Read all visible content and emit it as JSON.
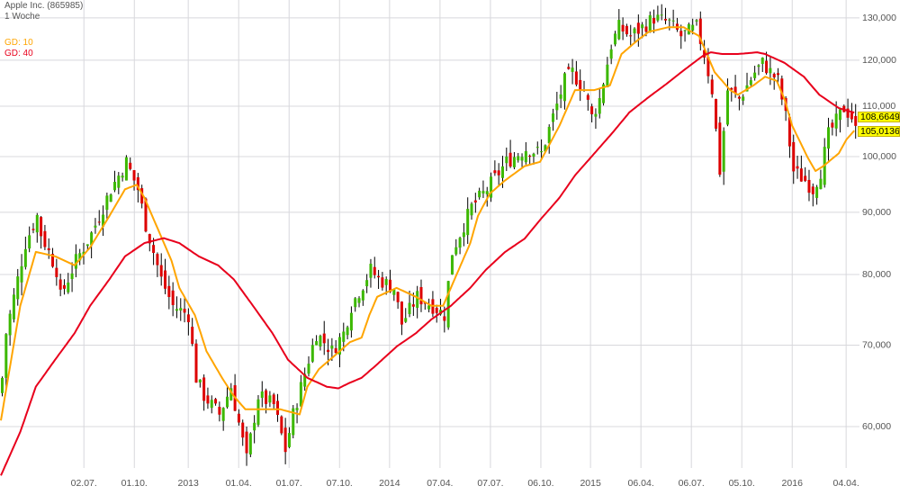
{
  "header": {
    "title": "Apple Inc. (865985)",
    "interval": "1 Woche"
  },
  "legend": [
    {
      "label": "GD: 10",
      "color": "#ffa500"
    },
    {
      "label": "GD: 40",
      "color": "#e8001c"
    }
  ],
  "last_values": {
    "gd40": "108,6649",
    "gd10": "105,0136"
  },
  "colors": {
    "up": "#3cb800",
    "down": "#dd0000",
    "wick": "#000000",
    "grid": "#d8d8dc"
  },
  "chart_data": {
    "type": "candlestick",
    "title": "Apple Inc. (865985)",
    "interval": "1 Woche",
    "y_scale": "log",
    "ylim": [
      53.5,
      133
    ],
    "y_ticks": [
      {
        "value": 130,
        "label": "130,000"
      },
      {
        "value": 120,
        "label": "120,000"
      },
      {
        "value": 110,
        "label": "110,000"
      },
      {
        "value": 100,
        "label": "100,000"
      },
      {
        "value": 90,
        "label": "90,000"
      },
      {
        "value": 80,
        "label": "80,000"
      },
      {
        "value": 70,
        "label": "70,000"
      },
      {
        "value": 60,
        "label": "60,000"
      }
    ],
    "x_unit": "week index",
    "x_range": [
      0,
      221
    ],
    "x_ticks": [
      {
        "week": 21.4,
        "label": "02.07."
      },
      {
        "week": 34.4,
        "label": "01.10."
      },
      {
        "week": 48.3,
        "label": "2013"
      },
      {
        "week": 61.3,
        "label": "01.04."
      },
      {
        "week": 74.3,
        "label": "01.07."
      },
      {
        "week": 87.3,
        "label": "07.10."
      },
      {
        "week": 100.2,
        "label": "2014"
      },
      {
        "week": 113.2,
        "label": "07.04."
      },
      {
        "week": 126.2,
        "label": "07.07."
      },
      {
        "week": 139.2,
        "label": "06.10."
      },
      {
        "week": 152.0,
        "label": "2015"
      },
      {
        "week": 165.0,
        "label": "06.04."
      },
      {
        "week": 178.0,
        "label": "06.07."
      },
      {
        "week": 191.0,
        "label": "05.10."
      },
      {
        "week": 204.0,
        "label": "2016"
      },
      {
        "week": 217.9,
        "label": "04.04."
      }
    ],
    "close_keypoints": [
      [
        0,
        65.8
      ],
      [
        1,
        71.6
      ],
      [
        6,
        84.9
      ],
      [
        9,
        89.4
      ],
      [
        10,
        86.4
      ],
      [
        14,
        80.7
      ],
      [
        15,
        76.7
      ],
      [
        19,
        82.1
      ],
      [
        23,
        86.4
      ],
      [
        28,
        94.0
      ],
      [
        32,
        99.0
      ],
      [
        35,
        94.0
      ],
      [
        37,
        87.9
      ],
      [
        41,
        79.3
      ],
      [
        44,
        75.4
      ],
      [
        48,
        74.1
      ],
      [
        50,
        65.8
      ],
      [
        52,
        63.6
      ],
      [
        56,
        61.4
      ],
      [
        59,
        64.7
      ],
      [
        61,
        60.4
      ],
      [
        63,
        56.4
      ],
      [
        66,
        63.6
      ],
      [
        70,
        62.5
      ],
      [
        73,
        57.4
      ],
      [
        75,
        61.4
      ],
      [
        79,
        68.1
      ],
      [
        81,
        71.6
      ],
      [
        85,
        69.2
      ],
      [
        88,
        71.6
      ],
      [
        90,
        75.4
      ],
      [
        95,
        80.7
      ],
      [
        97,
        79.3
      ],
      [
        101,
        78.0
      ],
      [
        103,
        72.9
      ],
      [
        107,
        76.7
      ],
      [
        111,
        75.4
      ],
      [
        114,
        74.1
      ],
      [
        116,
        83.5
      ],
      [
        121,
        90.9
      ],
      [
        125,
        94.0
      ],
      [
        130,
        99.0
      ],
      [
        135,
        101.5
      ],
      [
        139,
        100.6
      ],
      [
        142,
        107.8
      ],
      [
        145,
        115.4
      ],
      [
        147,
        117.3
      ],
      [
        150,
        113.4
      ],
      [
        152,
        107.8
      ],
      [
        154,
        111.5
      ],
      [
        157,
        123.5
      ],
      [
        159,
        127.7
      ],
      [
        162,
        125.6
      ],
      [
        165,
        127.7
      ],
      [
        168,
        130.0
      ],
      [
        172,
        128.8
      ],
      [
        175,
        125.6
      ],
      [
        179,
        127.7
      ],
      [
        181,
        121.4
      ],
      [
        183,
        113.4
      ],
      [
        185,
        97.3
      ],
      [
        187,
        113.4
      ],
      [
        190,
        111.5
      ],
      [
        194,
        117.3
      ],
      [
        196,
        119.4
      ],
      [
        200,
        115.4
      ],
      [
        202,
        107.8
      ],
      [
        204,
        97.3
      ],
      [
        207,
        95.6
      ],
      [
        209,
        94.0
      ],
      [
        211,
        97.3
      ],
      [
        213,
        104.2
      ],
      [
        217,
        109.6
      ],
      [
        219,
        107.8
      ],
      [
        220,
        105.0
      ]
    ],
    "series": [
      {
        "name": "GD: 10",
        "color": "#ffa500",
        "points": [
          [
            0,
            60.7
          ],
          [
            5,
            75.4
          ],
          [
            9,
            83.5
          ],
          [
            14,
            82.8
          ],
          [
            19,
            81.4
          ],
          [
            23,
            84.2
          ],
          [
            28,
            89.4
          ],
          [
            32,
            94.0
          ],
          [
            35,
            94.8
          ],
          [
            37,
            92.5
          ],
          [
            41,
            86.4
          ],
          [
            44,
            82.1
          ],
          [
            46,
            78.0
          ],
          [
            50,
            74.1
          ],
          [
            53,
            69.2
          ],
          [
            57,
            65.8
          ],
          [
            60,
            63.6
          ],
          [
            63,
            62.0
          ],
          [
            67,
            62.0
          ],
          [
            72,
            62.0
          ],
          [
            77,
            61.4
          ],
          [
            79,
            64.7
          ],
          [
            82,
            66.9
          ],
          [
            86,
            68.6
          ],
          [
            90,
            70.4
          ],
          [
            93,
            71.0
          ],
          [
            95,
            74.1
          ],
          [
            97,
            76.7
          ],
          [
            102,
            78.0
          ],
          [
            107,
            76.7
          ],
          [
            111,
            75.4
          ],
          [
            114,
            75.4
          ],
          [
            116,
            78.0
          ],
          [
            121,
            84.9
          ],
          [
            123,
            89.4
          ],
          [
            126,
            93.2
          ],
          [
            130,
            95.6
          ],
          [
            135,
            98.2
          ],
          [
            139,
            99.0
          ],
          [
            144,
            106.0
          ],
          [
            148,
            113.4
          ],
          [
            153,
            113.4
          ],
          [
            157,
            114.4
          ],
          [
            160,
            121.4
          ],
          [
            164,
            124.5
          ],
          [
            167,
            126.6
          ],
          [
            172,
            127.7
          ],
          [
            176,
            127.7
          ],
          [
            180,
            125.6
          ],
          [
            182,
            121.4
          ],
          [
            184,
            117.3
          ],
          [
            188,
            113.4
          ],
          [
            190,
            112.4
          ],
          [
            194,
            114.4
          ],
          [
            197,
            116.3
          ],
          [
            200,
            115.4
          ],
          [
            202,
            111.5
          ],
          [
            204,
            106.0
          ],
          [
            208,
            99.8
          ],
          [
            210,
            97.3
          ],
          [
            212,
            98.2
          ],
          [
            216,
            100.6
          ],
          [
            218,
            103.3
          ],
          [
            220,
            105.0136
          ]
        ]
      },
      {
        "name": "GD: 40",
        "color": "#e8001c",
        "points": [
          [
            0,
            54.7
          ],
          [
            5,
            59.4
          ],
          [
            9,
            64.7
          ],
          [
            14,
            68.1
          ],
          [
            19,
            71.6
          ],
          [
            23,
            75.4
          ],
          [
            28,
            79.3
          ],
          [
            32,
            82.8
          ],
          [
            37,
            84.9
          ],
          [
            42,
            85.7
          ],
          [
            46,
            84.9
          ],
          [
            51,
            82.8
          ],
          [
            56,
            81.4
          ],
          [
            60,
            79.3
          ],
          [
            65,
            75.4
          ],
          [
            70,
            71.6
          ],
          [
            74,
            68.1
          ],
          [
            79,
            65.8
          ],
          [
            84,
            64.7
          ],
          [
            87,
            64.5
          ],
          [
            90,
            65.2
          ],
          [
            93,
            65.8
          ],
          [
            97,
            67.5
          ],
          [
            102,
            69.8
          ],
          [
            107,
            71.6
          ],
          [
            111,
            73.5
          ],
          [
            116,
            75.4
          ],
          [
            121,
            78.0
          ],
          [
            125,
            80.7
          ],
          [
            130,
            83.5
          ],
          [
            135,
            85.6
          ],
          [
            139,
            88.7
          ],
          [
            144,
            92.5
          ],
          [
            148,
            96.5
          ],
          [
            153,
            100.6
          ],
          [
            158,
            104.9
          ],
          [
            162,
            108.7
          ],
          [
            167,
            111.9
          ],
          [
            172,
            115.0
          ],
          [
            176,
            117.7
          ],
          [
            181,
            121.0
          ],
          [
            183,
            121.8
          ],
          [
            186,
            121.4
          ],
          [
            190,
            121.4
          ],
          [
            195,
            121.8
          ],
          [
            197,
            121.4
          ],
          [
            202,
            119.4
          ],
          [
            207,
            116.3
          ],
          [
            211,
            112.4
          ],
          [
            216,
            109.6
          ],
          [
            220,
            108.6649
          ]
        ]
      }
    ]
  }
}
